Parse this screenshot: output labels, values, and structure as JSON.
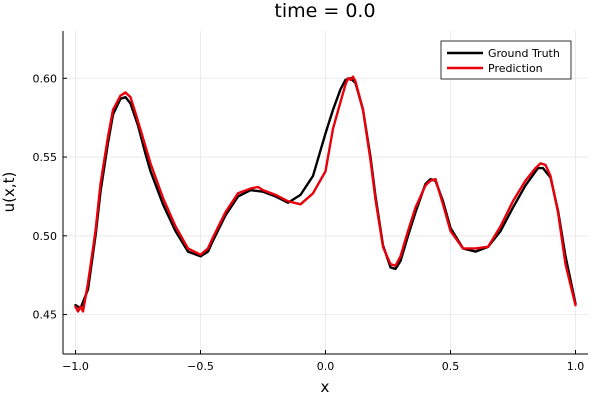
{
  "chart_data": {
    "type": "line",
    "title": "time = 0.0",
    "xlabel": "x",
    "ylabel": "u(x,t)",
    "xlim": [
      -1.05,
      1.05
    ],
    "ylim": [
      0.425,
      0.63
    ],
    "x_ticks": [
      -1.0,
      -0.5,
      0.0,
      0.5,
      1.0
    ],
    "x_tick_labels": [
      "−1.0",
      "−0.5",
      "0.0",
      "0.5",
      "1.0"
    ],
    "y_ticks": [
      0.45,
      0.5,
      0.55,
      0.6
    ],
    "y_tick_labels": [
      "0.45",
      "0.50",
      "0.55",
      "0.60"
    ],
    "grid": true,
    "legend_position": "top-right",
    "colors": {
      "ground_truth": "#000000",
      "prediction": "#e8000b"
    },
    "series": [
      {
        "name": "Ground Truth",
        "x": [
          -1.0,
          -0.98,
          -0.95,
          -0.92,
          -0.9,
          -0.87,
          -0.85,
          -0.82,
          -0.8,
          -0.78,
          -0.75,
          -0.72,
          -0.7,
          -0.65,
          -0.6,
          -0.55,
          -0.5,
          -0.47,
          -0.45,
          -0.4,
          -0.35,
          -0.3,
          -0.25,
          -0.2,
          -0.15,
          -0.1,
          -0.05,
          0.0,
          0.03,
          0.06,
          0.08,
          0.1,
          0.12,
          0.15,
          0.18,
          0.2,
          0.23,
          0.26,
          0.28,
          0.3,
          0.33,
          0.36,
          0.4,
          0.42,
          0.44,
          0.47,
          0.5,
          0.55,
          0.6,
          0.65,
          0.7,
          0.75,
          0.8,
          0.85,
          0.87,
          0.9,
          0.93,
          0.96,
          1.0
        ],
        "y": [
          0.456,
          0.454,
          0.466,
          0.5,
          0.528,
          0.559,
          0.577,
          0.587,
          0.588,
          0.584,
          0.57,
          0.552,
          0.541,
          0.52,
          0.503,
          0.49,
          0.487,
          0.49,
          0.497,
          0.513,
          0.525,
          0.529,
          0.528,
          0.525,
          0.521,
          0.526,
          0.538,
          0.565,
          0.58,
          0.593,
          0.599,
          0.6,
          0.597,
          0.58,
          0.55,
          0.525,
          0.494,
          0.48,
          0.479,
          0.484,
          0.5,
          0.515,
          0.533,
          0.536,
          0.535,
          0.522,
          0.505,
          0.492,
          0.49,
          0.493,
          0.503,
          0.518,
          0.532,
          0.543,
          0.543,
          0.537,
          0.516,
          0.487,
          0.457
        ]
      },
      {
        "name": "Prediction",
        "x": [
          -1.0,
          -0.99,
          -0.98,
          -0.97,
          -0.95,
          -0.92,
          -0.9,
          -0.87,
          -0.85,
          -0.82,
          -0.8,
          -0.78,
          -0.76,
          -0.73,
          -0.7,
          -0.65,
          -0.6,
          -0.55,
          -0.5,
          -0.47,
          -0.45,
          -0.4,
          -0.35,
          -0.3,
          -0.27,
          -0.25,
          -0.2,
          -0.15,
          -0.1,
          -0.05,
          0.0,
          0.03,
          0.06,
          0.08,
          0.09,
          0.1,
          0.11,
          0.12,
          0.15,
          0.18,
          0.2,
          0.23,
          0.26,
          0.28,
          0.3,
          0.33,
          0.36,
          0.4,
          0.42,
          0.44,
          0.47,
          0.5,
          0.55,
          0.6,
          0.65,
          0.7,
          0.75,
          0.8,
          0.84,
          0.86,
          0.88,
          0.9,
          0.93,
          0.96,
          1.0
        ],
        "y": [
          0.455,
          0.452,
          0.455,
          0.452,
          0.47,
          0.503,
          0.533,
          0.563,
          0.58,
          0.589,
          0.591,
          0.588,
          0.578,
          0.562,
          0.546,
          0.524,
          0.506,
          0.492,
          0.488,
          0.492,
          0.499,
          0.515,
          0.527,
          0.53,
          0.531,
          0.529,
          0.526,
          0.522,
          0.52,
          0.527,
          0.541,
          0.568,
          0.585,
          0.596,
          0.6,
          0.599,
          0.601,
          0.598,
          0.58,
          0.548,
          0.523,
          0.493,
          0.482,
          0.481,
          0.487,
          0.503,
          0.518,
          0.532,
          0.535,
          0.536,
          0.52,
          0.503,
          0.492,
          0.492,
          0.493,
          0.506,
          0.522,
          0.535,
          0.543,
          0.546,
          0.545,
          0.538,
          0.515,
          0.482,
          0.456
        ]
      }
    ]
  }
}
